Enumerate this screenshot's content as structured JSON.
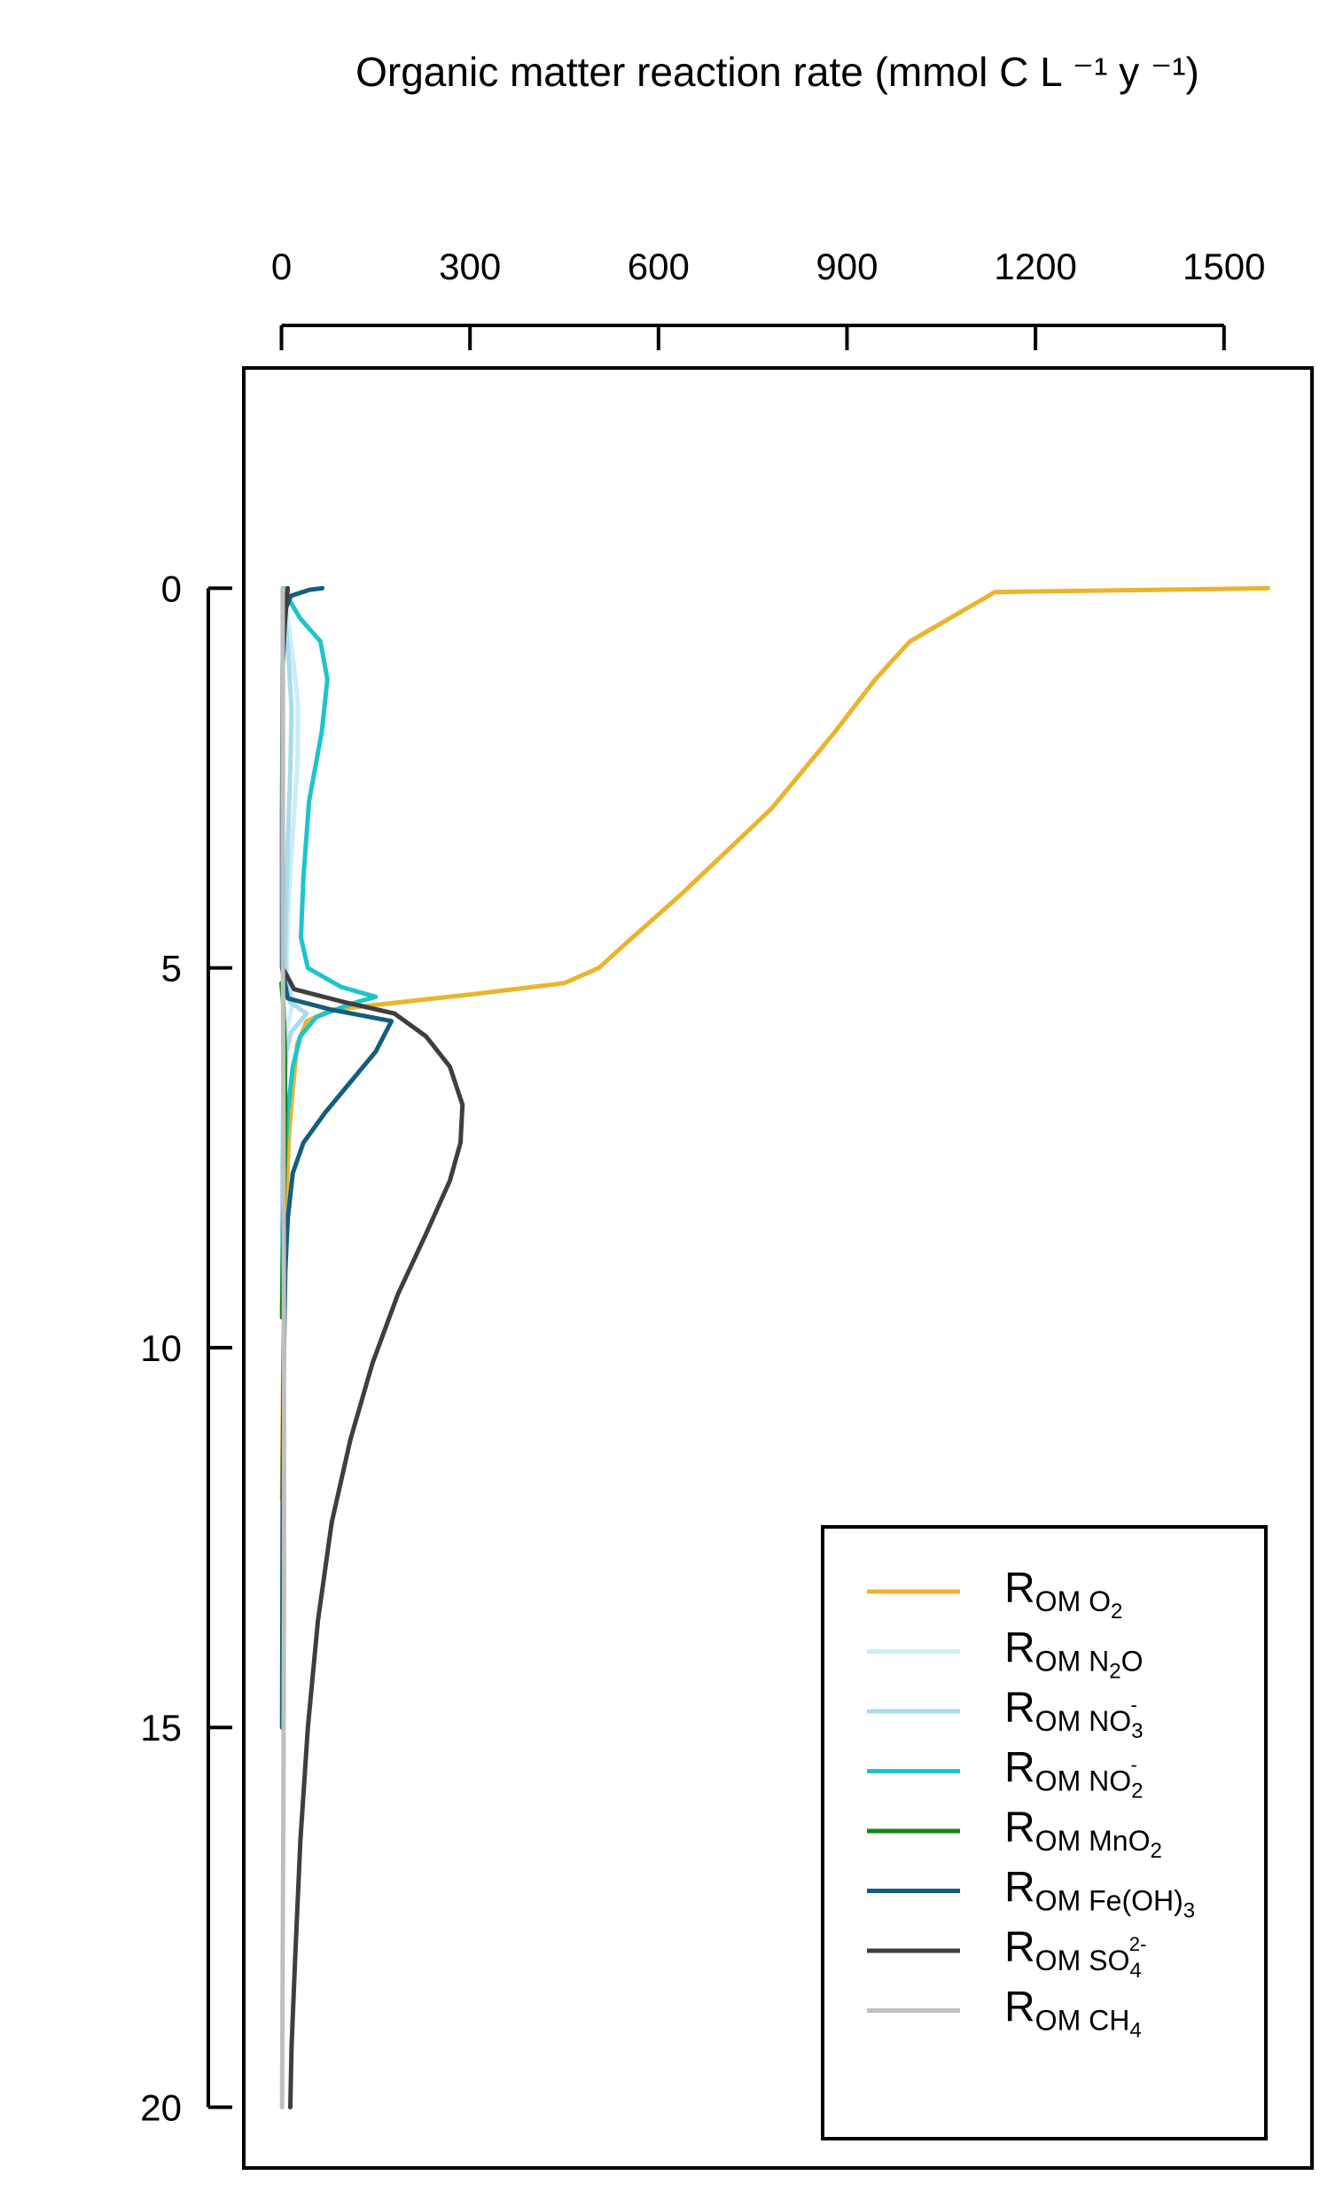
{
  "chart_data": {
    "type": "line",
    "orientation": "depth-profile",
    "xlabel": "Organic matter reaction rate (mmol C L ⁻¹ y ⁻¹)",
    "xlim": [
      -60,
      1640
    ],
    "xticks": [
      0,
      300,
      600,
      900,
      1200,
      1500
    ],
    "x_axis_position": "top",
    "ylabel": "",
    "ylim": [
      -2.9,
      20.8
    ],
    "y_inverted": true,
    "yticks": [
      0,
      5,
      10,
      15,
      20
    ],
    "grid": false,
    "legend_position": "bottom-right",
    "series": [
      {
        "name": "R_OM O2",
        "legend": {
          "main": "R",
          "sub": "OM O",
          "sub2": "2",
          "sup": ""
        },
        "color": "#EBB42E",
        "points": [
          [
            1570,
            0
          ],
          [
            1135,
            0.05
          ],
          [
            1125,
            0.1
          ],
          [
            1000,
            0.7
          ],
          [
            945,
            1.2
          ],
          [
            880,
            1.9
          ],
          [
            780,
            2.9
          ],
          [
            640,
            4.0
          ],
          [
            545,
            4.7
          ],
          [
            505,
            5.0
          ],
          [
            450,
            5.2
          ],
          [
            300,
            5.35
          ],
          [
            80,
            5.55
          ],
          [
            40,
            5.7
          ],
          [
            25,
            6.0
          ],
          [
            18,
            6.6
          ],
          [
            12,
            7.2
          ],
          [
            8,
            8.0
          ],
          [
            5,
            9.0
          ],
          [
            3,
            10.0
          ],
          [
            2,
            11.0
          ],
          [
            1,
            12.0
          ]
        ]
      },
      {
        "name": "R_OM N2O",
        "legend": {
          "main": "R",
          "sub": "OM N",
          "sub2": "2",
          "sub3": "O",
          "sup": ""
        },
        "color": "#C9EEFB",
        "points": [
          [
            3,
            0
          ],
          [
            8,
            0.3
          ],
          [
            18,
            0.9
          ],
          [
            26,
            1.5
          ],
          [
            26,
            2.2
          ],
          [
            20,
            3.0
          ],
          [
            12,
            4.0
          ],
          [
            8,
            5.0
          ],
          [
            18,
            5.45
          ],
          [
            14,
            5.6
          ],
          [
            8,
            5.8
          ],
          [
            4,
            6.2
          ],
          [
            2,
            7.0
          ],
          [
            1,
            8.0
          ]
        ]
      },
      {
        "name": "R_OM NO3-",
        "legend": {
          "main": "R",
          "sub": "OM NO",
          "sub2": "3",
          "sup": "-"
        },
        "color": "#A8DCEB",
        "points": [
          [
            3,
            0
          ],
          [
            6,
            0.4
          ],
          [
            12,
            1.0
          ],
          [
            16,
            1.6
          ],
          [
            14,
            2.4
          ],
          [
            10,
            3.4
          ],
          [
            7,
            4.4
          ],
          [
            6,
            5.0
          ],
          [
            14,
            5.45
          ],
          [
            40,
            5.6
          ],
          [
            30,
            5.7
          ],
          [
            15,
            5.85
          ],
          [
            8,
            6.1
          ],
          [
            4,
            6.6
          ],
          [
            2,
            7.5
          ],
          [
            1,
            8.5
          ]
        ]
      },
      {
        "name": "R_OM NO2-",
        "legend": {
          "main": "R",
          "sub": "OM NO",
          "sub2": "2",
          "sup": "-"
        },
        "color": "#1EC4CB",
        "points": [
          [
            5,
            0
          ],
          [
            12,
            0.15
          ],
          [
            30,
            0.4
          ],
          [
            62,
            0.7
          ],
          [
            73,
            1.2
          ],
          [
            64,
            1.9
          ],
          [
            44,
            2.8
          ],
          [
            35,
            3.8
          ],
          [
            31,
            4.6
          ],
          [
            42,
            5.0
          ],
          [
            95,
            5.25
          ],
          [
            150,
            5.38
          ],
          [
            120,
            5.45
          ],
          [
            85,
            5.55
          ],
          [
            55,
            5.65
          ],
          [
            30,
            5.9
          ],
          [
            18,
            6.3
          ],
          [
            10,
            6.9
          ],
          [
            5,
            7.6
          ],
          [
            2,
            8.5
          ],
          [
            1,
            9.5
          ]
        ]
      },
      {
        "name": "R_OM MnO2",
        "legend": {
          "main": "R",
          "sub": "OM MnO",
          "sub2": "2",
          "sup": ""
        },
        "color": "#0E8A0E",
        "points": [
          [
            0,
            5.2
          ],
          [
            3,
            5.5
          ],
          [
            5,
            6.0
          ],
          [
            6,
            6.8
          ],
          [
            5,
            7.6
          ],
          [
            3,
            8.4
          ],
          [
            2,
            9.0
          ],
          [
            1,
            9.6
          ]
        ]
      },
      {
        "name": "R_OM Fe(OH)3",
        "legend": {
          "main": "R",
          "sub": "OM Fe(OH)",
          "sub2": "3",
          "sup": ""
        },
        "color": "#125F7D",
        "points": [
          [
            65,
            0
          ],
          [
            45,
            0.02
          ],
          [
            15,
            0.1
          ],
          [
            5,
            0.3
          ],
          [
            2,
            1.0
          ],
          [
            1,
            3.0
          ],
          [
            1,
            5.0
          ],
          [
            10,
            5.4
          ],
          [
            80,
            5.55
          ],
          [
            175,
            5.7
          ],
          [
            150,
            6.1
          ],
          [
            110,
            6.5
          ],
          [
            70,
            6.9
          ],
          [
            35,
            7.3
          ],
          [
            18,
            7.7
          ],
          [
            10,
            8.3
          ],
          [
            6,
            9.0
          ],
          [
            3,
            10.5
          ],
          [
            2,
            12.0
          ],
          [
            1,
            15.0
          ]
        ]
      },
      {
        "name": "R_OM SO4 2-",
        "legend": {
          "main": "R",
          "sub": "OM SO",
          "sub2": "4",
          "sup": "2-"
        },
        "color": "#3E3E3E",
        "points": [
          [
            10,
            0
          ],
          [
            8,
            0.2
          ],
          [
            5,
            0.5
          ],
          [
            2,
            1.0
          ],
          [
            2,
            3.0
          ],
          [
            2,
            5.0
          ],
          [
            20,
            5.28
          ],
          [
            100,
            5.45
          ],
          [
            180,
            5.6
          ],
          [
            230,
            5.9
          ],
          [
            268,
            6.3
          ],
          [
            288,
            6.8
          ],
          [
            285,
            7.3
          ],
          [
            268,
            7.8
          ],
          [
            230,
            8.5
          ],
          [
            185,
            9.3
          ],
          [
            145,
            10.2
          ],
          [
            110,
            11.2
          ],
          [
            80,
            12.3
          ],
          [
            58,
            13.6
          ],
          [
            42,
            15.0
          ],
          [
            30,
            16.5
          ],
          [
            22,
            18.0
          ],
          [
            16,
            19.2
          ],
          [
            14,
            20.0
          ]
        ]
      },
      {
        "name": "R_OM CH4",
        "legend": {
          "main": "R",
          "sub": "OM CH",
          "sub2": "4",
          "sup": ""
        },
        "color": "#BFBFBF",
        "points": [
          [
            2,
            0
          ],
          [
            2,
            4.0
          ],
          [
            3,
            7.0
          ],
          [
            4,
            10.0
          ],
          [
            4,
            13.0
          ],
          [
            3,
            16.0
          ],
          [
            2,
            18.0
          ],
          [
            1,
            20.0
          ]
        ]
      }
    ]
  }
}
